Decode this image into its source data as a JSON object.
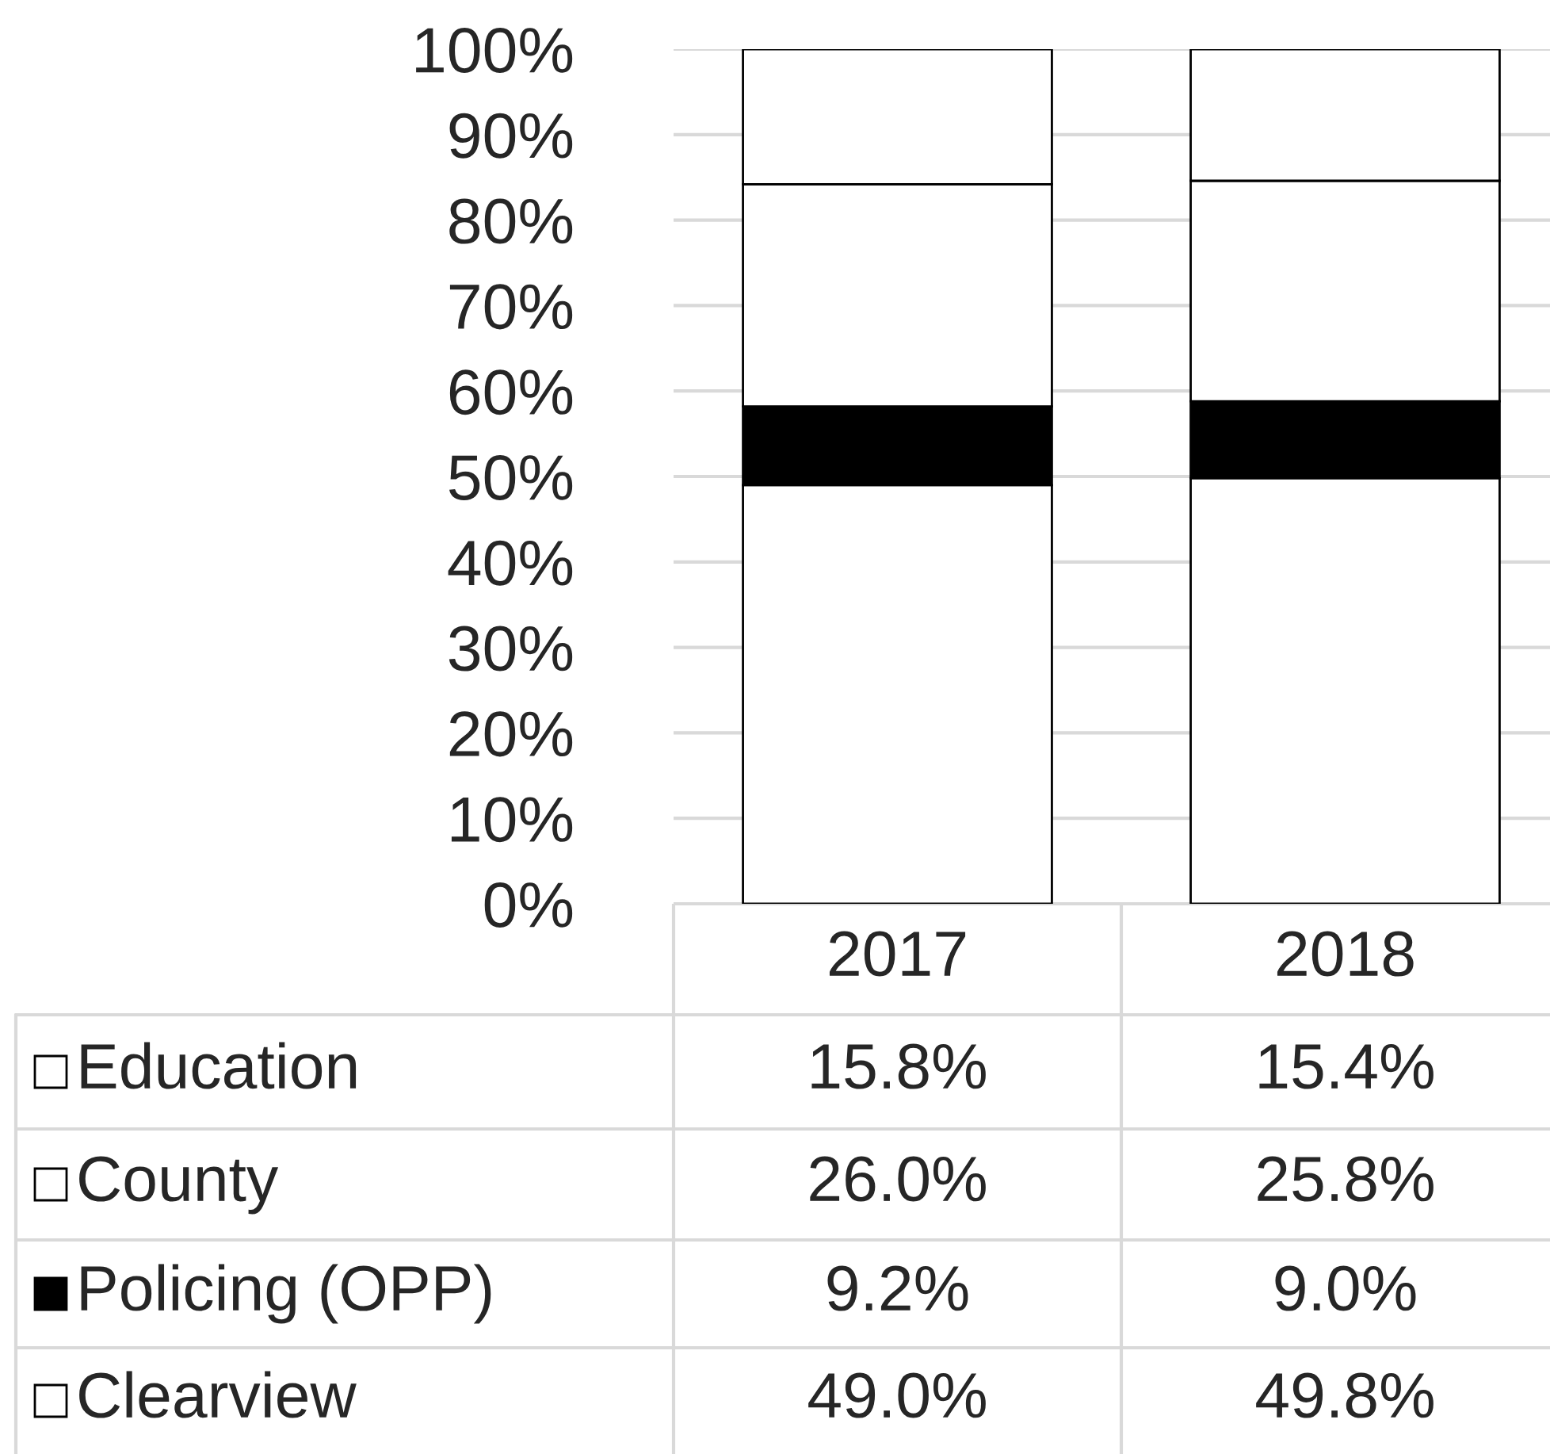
{
  "chart_data": {
    "type": "bar",
    "stacked": true,
    "categories": [
      "2017",
      "2018"
    ],
    "series": [
      {
        "name": "Clearview",
        "color": "#ffffff",
        "values": [
          49.0,
          49.8
        ],
        "value_labels": [
          "49.0%",
          "49.8%"
        ]
      },
      {
        "name": "Policing (OPP)",
        "color": "#000000",
        "values": [
          9.2,
          9.0
        ],
        "value_labels": [
          "9.2%",
          "9.0%"
        ]
      },
      {
        "name": "County",
        "color": "#ffffff",
        "values": [
          26.0,
          25.8
        ],
        "value_labels": [
          "26.0%",
          "25.8%"
        ]
      },
      {
        "name": "Education",
        "color": "#ffffff",
        "values": [
          15.8,
          15.4
        ],
        "value_labels": [
          "15.8%",
          "15.4%"
        ]
      }
    ],
    "ylim": [
      0,
      100
    ],
    "yticks": [
      {
        "value": 0,
        "label": "0%"
      },
      {
        "value": 10,
        "label": "10%"
      },
      {
        "value": 20,
        "label": "20%"
      },
      {
        "value": 30,
        "label": "30%"
      },
      {
        "value": 40,
        "label": "40%"
      },
      {
        "value": 50,
        "label": "50%"
      },
      {
        "value": 60,
        "label": "60%"
      },
      {
        "value": 70,
        "label": "70%"
      },
      {
        "value": 80,
        "label": "80%"
      },
      {
        "value": 90,
        "label": "90%"
      },
      {
        "value": 100,
        "label": "100%"
      }
    ],
    "grid": "y",
    "legend": "bottom"
  }
}
